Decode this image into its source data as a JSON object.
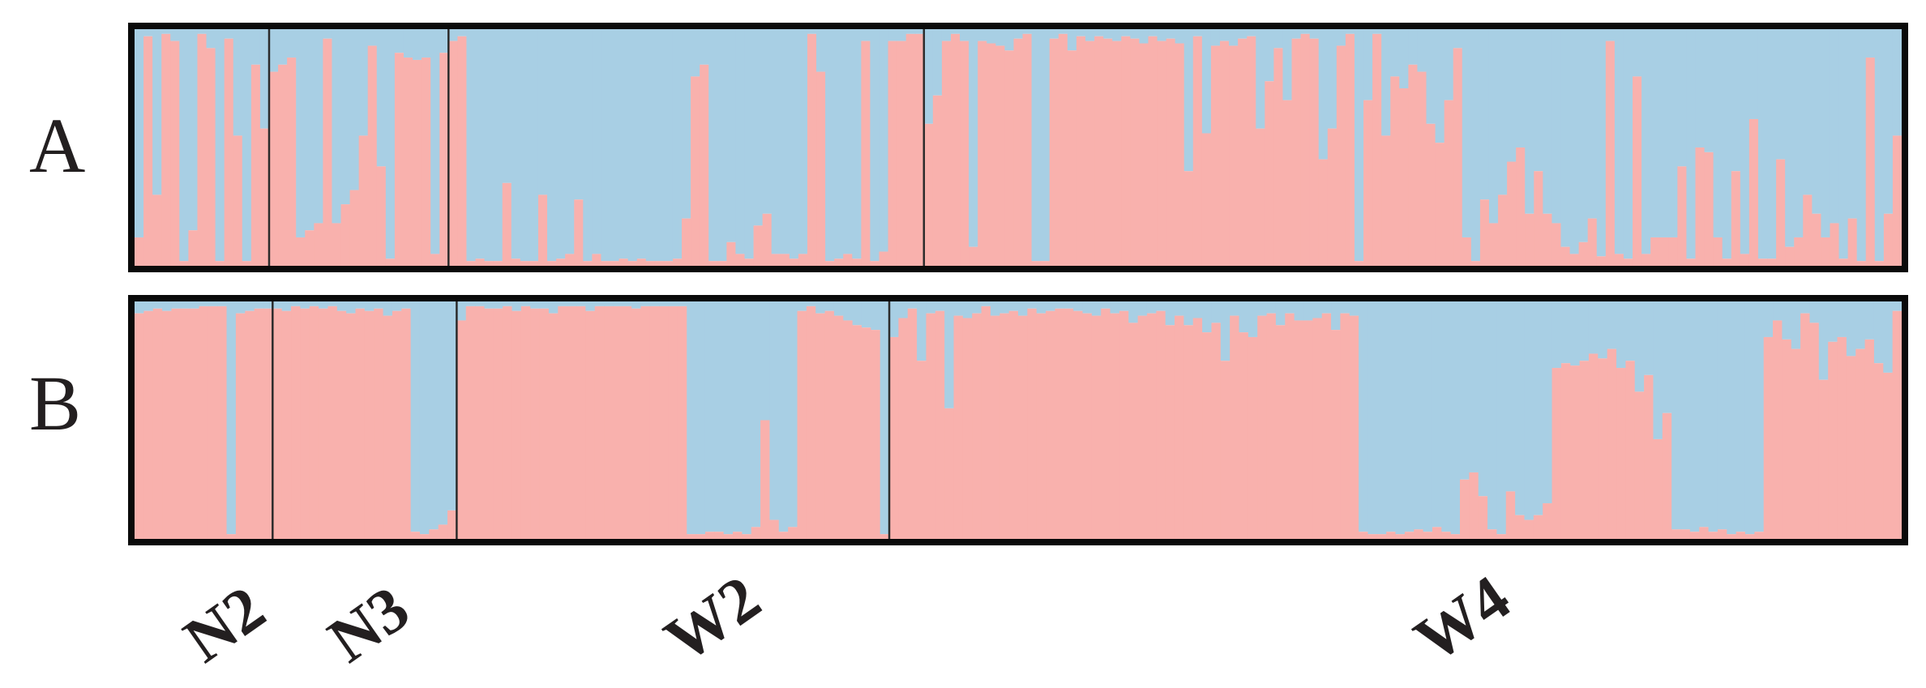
{
  "chart_data": [
    {
      "type": "bar",
      "stacked": true,
      "panel_label": "A",
      "colors": {
        "cluster1": "#f9b1ad",
        "cluster2": "#a8cfe4",
        "divider": "#2b2b2b",
        "frame": "#0a0a0a"
      },
      "ylim": [
        0,
        1
      ],
      "groups": [
        {
          "label": "N2",
          "n": 15,
          "values": [
            0.12,
            0.97,
            0.3,
            0.98,
            0.95,
            0.02,
            0.15,
            0.98,
            0.92,
            0.02,
            0.96,
            0.55,
            0.02,
            0.85,
            0.58
          ]
        },
        {
          "label": "N3",
          "n": 20,
          "values": [
            0.82,
            0.85,
            0.88,
            0.12,
            0.15,
            0.18,
            0.96,
            0.18,
            0.26,
            0.32,
            0.55,
            0.93,
            0.42,
            0.03,
            0.9,
            0.88,
            0.87,
            0.88,
            0.05,
            0.9
          ]
        },
        {
          "label": "W2",
          "n": 53,
          "values": [
            0.95,
            0.97,
            0.02,
            0.03,
            0.02,
            0.02,
            0.35,
            0.03,
            0.02,
            0.02,
            0.3,
            0.02,
            0.03,
            0.05,
            0.28,
            0.02,
            0.05,
            0.02,
            0.02,
            0.03,
            0.02,
            0.03,
            0.02,
            0.02,
            0.02,
            0.03,
            0.2,
            0.8,
            0.85,
            0.02,
            0.02,
            0.1,
            0.05,
            0.03,
            0.17,
            0.22,
            0.05,
            0.05,
            0.03,
            0.05,
            0.98,
            0.82,
            0.02,
            0.03,
            0.05,
            0.03,
            0.95,
            0.02,
            0.06,
            0.95,
            0.95,
            0.98,
            0.98
          ]
        },
        {
          "label": "W4",
          "n": 109,
          "values": [
            0.6,
            0.72,
            0.95,
            0.98,
            0.95,
            0.08,
            0.95,
            0.94,
            0.93,
            0.91,
            0.96,
            0.98,
            0.02,
            0.02,
            0.96,
            0.98,
            0.91,
            0.97,
            0.95,
            0.97,
            0.96,
            0.95,
            0.97,
            0.96,
            0.94,
            0.97,
            0.95,
            0.96,
            0.94,
            0.4,
            0.97,
            0.56,
            0.93,
            0.95,
            0.93,
            0.96,
            0.97,
            0.58,
            0.78,
            0.92,
            0.7,
            0.96,
            0.98,
            0.96,
            0.45,
            0.58,
            0.93,
            0.98,
            0.02,
            0.7,
            0.98,
            0.55,
            0.8,
            0.75,
            0.85,
            0.82,
            0.6,
            0.52,
            0.7,
            0.92,
            0.12,
            0.02,
            0.28,
            0.18,
            0.3,
            0.44,
            0.5,
            0.22,
            0.4,
            0.22,
            0.18,
            0.08,
            0.05,
            0.1,
            0.2,
            0.04,
            0.95,
            0.05,
            0.03,
            0.8,
            0.05,
            0.12,
            0.12,
            0.12,
            0.42,
            0.03,
            0.5,
            0.48,
            0.12,
            0.03,
            0.4,
            0.05,
            0.62,
            0.03,
            0.03,
            0.45,
            0.08,
            0.12,
            0.3,
            0.22,
            0.12,
            0.18,
            0.03,
            0.2,
            0.02,
            0.88,
            0.02,
            0.22,
            0.55
          ]
        }
      ]
    },
    {
      "type": "bar",
      "stacked": true,
      "panel_label": "B",
      "colors": {
        "cluster1": "#f9b1ad",
        "cluster2": "#a8cfe4",
        "divider": "#2b2b2b",
        "frame": "#0a0a0a"
      },
      "ylim": [
        0,
        1
      ],
      "groups": [
        {
          "label": "N2",
          "n": 15,
          "values": [
            0.95,
            0.96,
            0.97,
            0.96,
            0.97,
            0.97,
            0.97,
            0.98,
            0.98,
            0.98,
            0.02,
            0.95,
            0.96,
            0.97,
            0.97
          ]
        },
        {
          "label": "N3",
          "n": 20,
          "values": [
            0.97,
            0.96,
            0.98,
            0.97,
            0.98,
            0.97,
            0.98,
            0.96,
            0.95,
            0.97,
            0.96,
            0.97,
            0.94,
            0.96,
            0.97,
            0.03,
            0.02,
            0.04,
            0.06,
            0.12
          ]
        },
        {
          "label": "W2",
          "n": 47,
          "values": [
            0.92,
            0.98,
            0.98,
            0.97,
            0.97,
            0.98,
            0.96,
            0.98,
            0.97,
            0.97,
            0.95,
            0.98,
            0.98,
            0.98,
            0.96,
            0.98,
            0.98,
            0.98,
            0.98,
            0.97,
            0.98,
            0.98,
            0.98,
            0.98,
            0.98,
            0.02,
            0.02,
            0.03,
            0.03,
            0.02,
            0.03,
            0.02,
            0.05,
            0.5,
            0.08,
            0.03,
            0.05,
            0.96,
            0.98,
            0.95,
            0.96,
            0.94,
            0.92,
            0.9,
            0.89,
            0.88,
            0.02
          ]
        },
        {
          "label": "W4",
          "n": 110,
          "values": [
            0.85,
            0.93,
            0.97,
            0.75,
            0.95,
            0.96,
            0.55,
            0.94,
            0.93,
            0.95,
            0.98,
            0.94,
            0.95,
            0.96,
            0.94,
            0.97,
            0.95,
            0.96,
            0.97,
            0.97,
            0.96,
            0.95,
            0.94,
            0.97,
            0.95,
            0.96,
            0.91,
            0.94,
            0.95,
            0.96,
            0.9,
            0.94,
            0.9,
            0.93,
            0.87,
            0.91,
            0.75,
            0.94,
            0.87,
            0.85,
            0.94,
            0.95,
            0.9,
            0.95,
            0.92,
            0.92,
            0.93,
            0.95,
            0.88,
            0.95,
            0.94,
            0.03,
            0.02,
            0.02,
            0.03,
            0.02,
            0.03,
            0.04,
            0.03,
            0.05,
            0.03,
            0.02,
            0.25,
            0.28,
            0.18,
            0.04,
            0.02,
            0.2,
            0.1,
            0.08,
            0.1,
            0.15,
            0.72,
            0.74,
            0.73,
            0.75,
            0.78,
            0.76,
            0.8,
            0.72,
            0.75,
            0.62,
            0.69,
            0.42,
            0.53,
            0.04,
            0.04,
            0.03,
            0.05,
            0.03,
            0.04,
            0.02,
            0.03,
            0.02,
            0.03,
            0.85,
            0.92,
            0.84,
            0.8,
            0.95,
            0.91,
            0.67,
            0.83,
            0.85,
            0.77,
            0.8,
            0.84,
            0.74,
            0.7,
            0.96
          ]
        }
      ]
    }
  ],
  "population_labels": [
    "N2",
    "N3",
    "W2",
    "W4"
  ]
}
